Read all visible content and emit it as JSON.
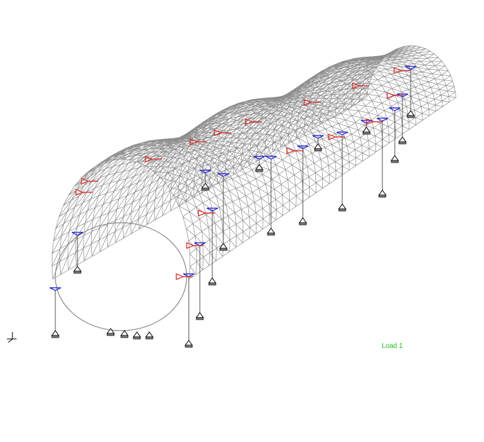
{
  "load_label": "Load 1"
}
